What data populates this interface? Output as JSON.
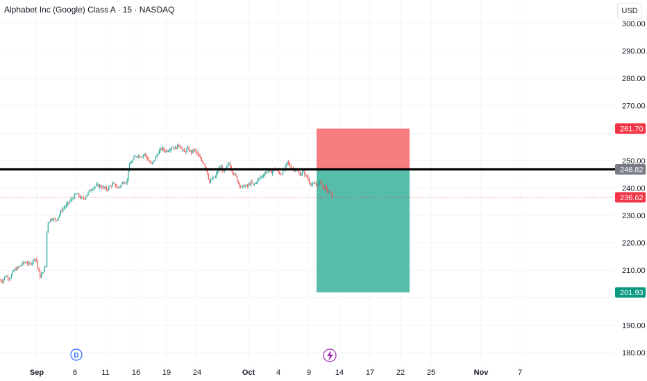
{
  "header": {
    "symbol_title": "Alphabet Inc (Google) Class A · 15 · NASDAQ",
    "currency": "USD"
  },
  "markers": {
    "dividend_label": "D",
    "earnings_icon": "lightning-bolt-icon"
  },
  "colors": {
    "up": "#26a69a",
    "down": "#ef5350",
    "stop_zone": "#f77c80",
    "target_zone": "#58bcaa",
    "level_line": "#000000",
    "last_price": "#f23645",
    "level_label": "#787b86",
    "target_label": "#089981",
    "dividend": "#2962ff",
    "earnings": "#9c27b0"
  },
  "chart_data": {
    "type": "candlestick",
    "title": "Alphabet Inc (Google) Class A · 15 · NASDAQ",
    "ylabel": "USD",
    "ylim": [
      175,
      304
    ],
    "y_ticks": [
      300,
      290,
      280,
      270,
      250,
      240,
      230,
      220,
      210,
      190,
      180
    ],
    "x_ticks": [
      {
        "label": "Sep",
        "bold": true
      },
      {
        "label": "6",
        "bold": false
      },
      {
        "label": "11",
        "bold": false
      },
      {
        "label": "16",
        "bold": false
      },
      {
        "label": "19",
        "bold": false
      },
      {
        "label": "24",
        "bold": false
      },
      {
        "label": "Oct",
        "bold": true
      },
      {
        "label": "4",
        "bold": false
      },
      {
        "label": "9",
        "bold": false
      },
      {
        "label": "14",
        "bold": false
      },
      {
        "label": "17",
        "bold": false
      },
      {
        "label": "22",
        "bold": false
      },
      {
        "label": "25",
        "bold": false
      },
      {
        "label": "Nov",
        "bold": true
      },
      {
        "label": "7",
        "bold": false
      }
    ],
    "price_path": [
      [
        0,
        206.5
      ],
      [
        3,
        206
      ],
      [
        8,
        208
      ],
      [
        14,
        207
      ],
      [
        20,
        210
      ],
      [
        26,
        211
      ],
      [
        33,
        212.5
      ],
      [
        38,
        213
      ],
      [
        42,
        212
      ],
      [
        46,
        213
      ],
      [
        50,
        214.5
      ],
      [
        53,
        213.5
      ],
      [
        55,
        210
      ],
      [
        58,
        207.5
      ],
      [
        60,
        208.5
      ],
      [
        63,
        210
      ],
      [
        66,
        211.5
      ],
      [
        68,
        227
      ],
      [
        72,
        228.5
      ],
      [
        76,
        229
      ],
      [
        80,
        228
      ],
      [
        85,
        230
      ],
      [
        90,
        232.5
      ],
      [
        95,
        233.5
      ],
      [
        100,
        235
      ],
      [
        105,
        236.5
      ],
      [
        110,
        238
      ],
      [
        114,
        237
      ],
      [
        118,
        236
      ],
      [
        122,
        236.5
      ],
      [
        126,
        238
      ],
      [
        131,
        239.5
      ],
      [
        136,
        240.5
      ],
      [
        141,
        241
      ],
      [
        146,
        240.5
      ],
      [
        150,
        240
      ],
      [
        154,
        239.5
      ],
      [
        158,
        240.5
      ],
      [
        162,
        241.5
      ],
      [
        166,
        241
      ],
      [
        170,
        240
      ],
      [
        175,
        241.5
      ],
      [
        180,
        242.5
      ],
      [
        183,
        242
      ],
      [
        184,
        246.5
      ],
      [
        188,
        249
      ],
      [
        193,
        251
      ],
      [
        198,
        252
      ],
      [
        203,
        251.5
      ],
      [
        208,
        252.5
      ],
      [
        213,
        250.5
      ],
      [
        218,
        248.5
      ],
      [
        223,
        250.5
      ],
      [
        228,
        253
      ],
      [
        233,
        254.5
      ],
      [
        238,
        253.5
      ],
      [
        243,
        254
      ],
      [
        248,
        255
      ],
      [
        253,
        254.5
      ],
      [
        258,
        256
      ],
      [
        262,
        254
      ],
      [
        266,
        253
      ],
      [
        270,
        254.5
      ],
      [
        275,
        253
      ],
      [
        280,
        254
      ],
      [
        285,
        252
      ],
      [
        290,
        250
      ],
      [
        294,
        249
      ],
      [
        298,
        246
      ],
      [
        302,
        242
      ],
      [
        306,
        243.5
      ],
      [
        310,
        244
      ],
      [
        314,
        246.5
      ],
      [
        318,
        248
      ],
      [
        322,
        245.5
      ],
      [
        326,
        247.5
      ],
      [
        330,
        249
      ],
      [
        335,
        246
      ],
      [
        340,
        244
      ],
      [
        344,
        241.5
      ],
      [
        348,
        240
      ],
      [
        352,
        241
      ],
      [
        356,
        240.5
      ],
      [
        361,
        242
      ],
      [
        365,
        241
      ],
      [
        370,
        242.5
      ],
      [
        375,
        244
      ],
      [
        380,
        245
      ],
      [
        385,
        246.5
      ],
      [
        390,
        245.5
      ],
      [
        395,
        247
      ],
      [
        400,
        246
      ],
      [
        405,
        245
      ],
      [
        410,
        247
      ],
      [
        414,
        249.5
      ],
      [
        418,
        248
      ],
      [
        422,
        247
      ],
      [
        427,
        246.5
      ],
      [
        432,
        245
      ],
      [
        437,
        246
      ],
      [
        442,
        244
      ],
      [
        446,
        242
      ],
      [
        450,
        241
      ],
      [
        454,
        241.5
      ],
      [
        458,
        241
      ],
      [
        461,
        242.5
      ],
      [
        463,
        242
      ],
      [
        466,
        239.5
      ],
      [
        469,
        240.5
      ],
      [
        471,
        238.5
      ],
      [
        474,
        239
      ],
      [
        477,
        237.5
      ],
      [
        479,
        236.6
      ]
    ],
    "position": {
      "entry": 246.82,
      "stop": 261.7,
      "target": 201.93,
      "last": 236.62
    },
    "axis_labels": [
      {
        "value": 261.7,
        "text": "261.70",
        "kind": "stop"
      },
      {
        "value": 246.82,
        "text": "246.82",
        "kind": "level"
      },
      {
        "value": 236.62,
        "text": "236.62",
        "kind": "last"
      },
      {
        "value": 201.93,
        "text": "201.93",
        "kind": "target"
      }
    ]
  }
}
